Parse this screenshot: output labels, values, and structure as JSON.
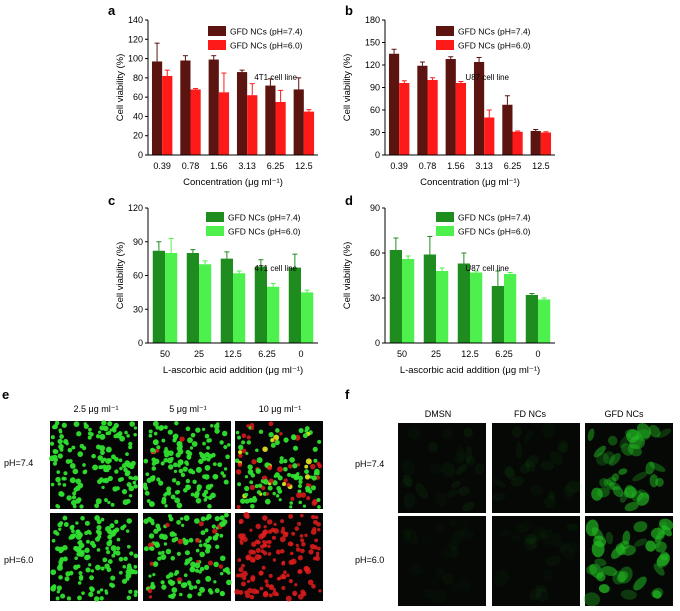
{
  "chart_data": [
    {
      "id": "a",
      "panel_label": "a",
      "type": "bar",
      "annotation": "4T1 cell line",
      "categories": [
        "0.39",
        "0.78",
        "1.56",
        "3.13",
        "6.25",
        "12.5"
      ],
      "series": [
        {
          "name": "GFD NCs (pH=7.4)",
          "color": "#5c1410",
          "values": [
            97,
            98,
            99,
            86,
            72,
            68
          ],
          "errors": [
            19,
            5,
            4,
            2,
            7,
            12
          ]
        },
        {
          "name": "GFD NCs (pH=6.0)",
          "color": "#ff1a1a",
          "values": [
            82,
            68,
            65,
            62,
            55,
            45
          ],
          "errors": [
            6,
            1,
            20,
            12,
            12,
            2
          ]
        }
      ],
      "xlabel": "Concentration (μg ml⁻¹)",
      "ylabel": "Cell viability (%)",
      "ylim": [
        0,
        140
      ],
      "yticks": [
        "0",
        "20",
        "40",
        "60",
        "80",
        "100",
        "120",
        "140"
      ]
    },
    {
      "id": "b",
      "panel_label": "b",
      "type": "bar",
      "annotation": "U87 cell line",
      "categories": [
        "0.39",
        "0.78",
        "1.56",
        "3.13",
        "6.25",
        "12.5"
      ],
      "series": [
        {
          "name": "GFD NCs (pH=7.4)",
          "color": "#5c1410",
          "values": [
            135,
            119,
            128,
            124,
            67,
            32
          ],
          "errors": [
            6,
            5,
            3,
            6,
            12,
            2
          ]
        },
        {
          "name": "GFD NCs (pH=6.0)",
          "color": "#ff1a1a",
          "values": [
            96,
            100,
            96,
            50,
            31,
            30
          ],
          "errors": [
            3,
            3,
            2,
            10,
            1,
            1
          ]
        }
      ],
      "xlabel": "Concentration (μg ml⁻¹)",
      "ylabel": "Cell viability (%)",
      "ylim": [
        0,
        180
      ],
      "yticks": [
        "0",
        "30",
        "60",
        "90",
        "120",
        "150",
        "180"
      ]
    },
    {
      "id": "c",
      "panel_label": "c",
      "type": "bar",
      "annotation": "4T1 cell line",
      "categories": [
        "50",
        "25",
        "12.5",
        "6.25",
        "0"
      ],
      "series": [
        {
          "name": "GFD NCs (pH=7.4)",
          "color": "#1e8c1e",
          "values": [
            82,
            80,
            75,
            68,
            67
          ],
          "errors": [
            8,
            3,
            6,
            6,
            12
          ]
        },
        {
          "name": "GFD NCs (pH=6.0)",
          "color": "#4ef04e",
          "values": [
            80,
            70,
            62,
            50,
            45
          ],
          "errors": [
            13,
            3,
            2,
            3,
            2
          ]
        }
      ],
      "xlabel": "L-ascorbic acid addition (μg ml⁻¹)",
      "ylabel": "Cell viability (%)",
      "ylim": [
        0,
        120
      ],
      "yticks": [
        "0",
        "30",
        "60",
        "90",
        "120"
      ]
    },
    {
      "id": "d",
      "panel_label": "d",
      "type": "bar",
      "annotation": "U87 cell line",
      "categories": [
        "50",
        "25",
        "12.5",
        "6.25",
        "0"
      ],
      "series": [
        {
          "name": "GFD NCs (pH=7.4)",
          "color": "#1e8c1e",
          "values": [
            62,
            59,
            53,
            38,
            32
          ],
          "errors": [
            8,
            12,
            7,
            10,
            1
          ]
        },
        {
          "name": "GFD NCs (pH=6.0)",
          "color": "#4ef04e",
          "values": [
            56,
            48,
            47,
            46,
            29
          ],
          "errors": [
            2,
            2,
            1,
            1,
            1
          ]
        }
      ],
      "xlabel": "L-ascorbic acid addition (μg ml⁻¹)",
      "ylabel": "Cell viability (%)",
      "ylim": [
        0,
        90
      ],
      "yticks": [
        "0",
        "30",
        "60",
        "90"
      ]
    }
  ],
  "micrographs": [
    {
      "id": "e",
      "panel_label": "e",
      "columns": [
        "2.5 μg ml⁻¹",
        "5 μg ml⁻¹",
        "10 μg ml⁻¹"
      ],
      "rows": [
        "pH=7.4",
        "pH=6.0"
      ],
      "stain": {
        "live": "#2fe02f",
        "dead": "#e01c1c"
      },
      "dead_fraction": [
        [
          0,
          0.02,
          0.3
        ],
        [
          0,
          0.08,
          1.0
        ]
      ]
    },
    {
      "id": "f",
      "panel_label": "f",
      "columns": [
        "DMSN",
        "FD NCs",
        "GFD NCs"
      ],
      "rows": [
        "pH=7.4",
        "pH=6.0"
      ],
      "fluorescence": "#22c022",
      "intensity": [
        [
          0.12,
          0.1,
          0.85
        ],
        [
          0.05,
          0.08,
          1.0
        ]
      ]
    }
  ]
}
